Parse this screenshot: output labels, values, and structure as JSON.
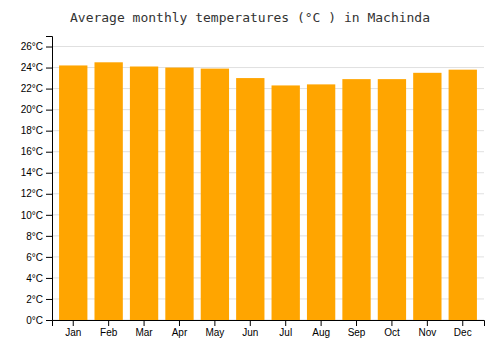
{
  "chart_data": {
    "type": "bar",
    "title": "Average monthly temperatures (°C ) in Machinda",
    "categories": [
      "Jan",
      "Feb",
      "Mar",
      "Apr",
      "May",
      "Jun",
      "Jul",
      "Aug",
      "Sep",
      "Oct",
      "Nov",
      "Dec"
    ],
    "values": [
      24.2,
      24.5,
      24.1,
      24.0,
      23.9,
      23.0,
      22.3,
      22.4,
      22.9,
      22.9,
      23.5,
      23.8
    ],
    "color": "#FFA500",
    "ylim": [
      0,
      27
    ],
    "yticks": [
      {
        "value": 0,
        "label": "0°C"
      },
      {
        "value": 2,
        "label": "2°C"
      },
      {
        "value": 4,
        "label": "4°C"
      },
      {
        "value": 6,
        "label": "6°C"
      },
      {
        "value": 8,
        "label": "8°C"
      },
      {
        "value": 10,
        "label": "10°C"
      },
      {
        "value": 12,
        "label": "12°C"
      },
      {
        "value": 14,
        "label": "14°C"
      },
      {
        "value": 16,
        "label": "16°C"
      },
      {
        "value": 18,
        "label": "18°C"
      },
      {
        "value": 20,
        "label": "20°C"
      },
      {
        "value": 22,
        "label": "22°C"
      },
      {
        "value": 24,
        "label": "24°C"
      },
      {
        "value": 26,
        "label": "26°C"
      }
    ],
    "grid": true
  }
}
